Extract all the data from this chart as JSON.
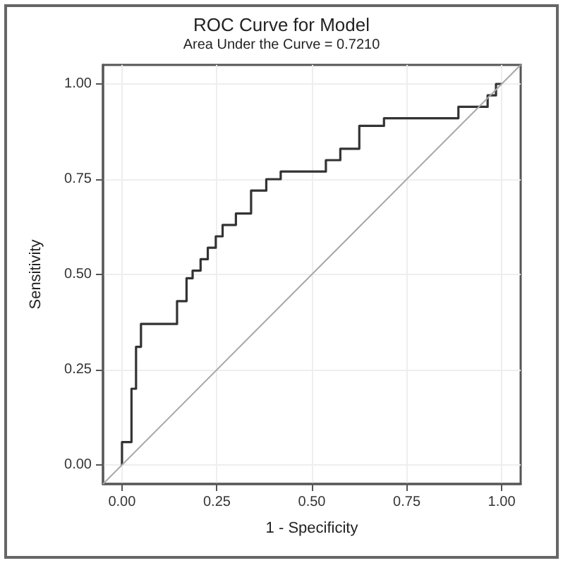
{
  "chart_data": {
    "type": "step",
    "title": "ROC Curve for Model",
    "subtitle": "Area Under the Curve = 0.7210",
    "xlabel": "1 - Specificity",
    "ylabel": "Sensitivity",
    "xlim": [
      -0.05,
      1.05
    ],
    "ylim": [
      -0.05,
      1.05
    ],
    "xticks": [
      {
        "value": 0,
        "label": "0.00"
      },
      {
        "value": 0.25,
        "label": "0.25"
      },
      {
        "value": 0.5,
        "label": "0.50"
      },
      {
        "value": 0.75,
        "label": "0.75"
      },
      {
        "value": 1,
        "label": "1.00"
      }
    ],
    "yticks": [
      {
        "value": 0,
        "label": "0.00"
      },
      {
        "value": 0.25,
        "label": "0.25"
      },
      {
        "value": 0.5,
        "label": "0.50"
      },
      {
        "value": 0.75,
        "label": "0.75"
      },
      {
        "value": 1,
        "label": "1.00"
      }
    ],
    "grid": true,
    "marker": "none",
    "line_style": "solid",
    "series": [
      {
        "color": "#333333",
        "x": [
          0,
          0,
          0.025,
          0.037,
          0.05,
          0.145,
          0.17,
          0.186,
          0.207,
          0.226,
          0.247,
          0.265,
          0.3,
          0.34,
          0.38,
          0.418,
          0.537,
          0.575,
          0.625,
          0.69,
          0.886,
          0.963,
          0.985,
          1
        ],
        "values": [
          0,
          0.06,
          0.2,
          0.31,
          0.37,
          0.43,
          0.49,
          0.51,
          0.54,
          0.57,
          0.6,
          0.63,
          0.66,
          0.72,
          0.75,
          0.77,
          0.8,
          0.83,
          0.89,
          0.91,
          0.94,
          0.97,
          1,
          1
        ]
      },
      {
        "type": "line",
        "color": "#a8a8a8",
        "x": [
          -0.05,
          1.05
        ],
        "values": [
          -0.05,
          1.05
        ]
      }
    ]
  }
}
